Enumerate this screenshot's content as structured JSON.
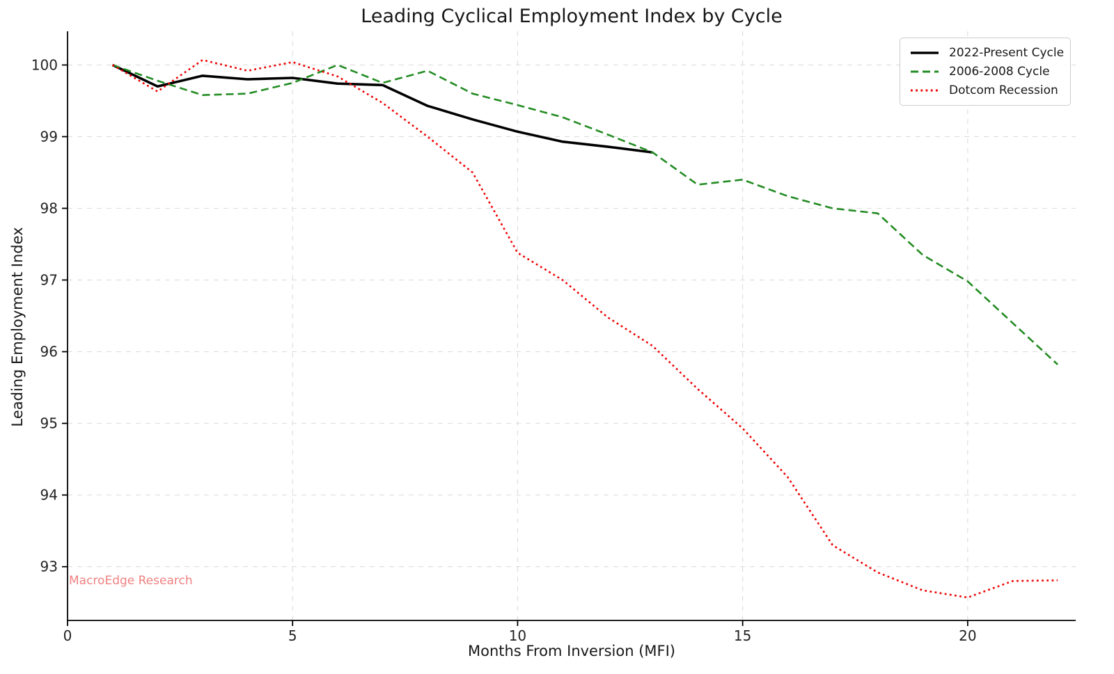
{
  "chart_data": {
    "type": "line",
    "title": "Leading Cyclical Employment Index by Cycle",
    "xlabel": "Months From Inversion (MFI)",
    "ylabel": "Leading Employment Index",
    "watermark": "MacroEdge Research",
    "watermark_color": "#f08080",
    "grid": true,
    "legend_position": "upper right",
    "x_ticks": [
      0,
      5,
      10,
      15,
      20
    ],
    "y_ticks": [
      93,
      94,
      95,
      96,
      97,
      98,
      99,
      100
    ],
    "xlim": [
      0,
      22.4
    ],
    "ylim": [
      92.25,
      100.47
    ],
    "x": [
      1,
      2,
      3,
      4,
      5,
      6,
      7,
      8,
      9,
      10,
      11,
      12,
      13,
      14,
      15,
      16,
      17,
      18,
      19,
      20,
      21,
      22
    ],
    "series": [
      {
        "name": "2022-Present Cycle",
        "color": "#000000",
        "style": "solid",
        "line_width": 3.6,
        "values": [
          100.0,
          99.7,
          99.85,
          99.8,
          99.82,
          99.74,
          99.72,
          99.43,
          99.24,
          99.07,
          98.93,
          98.86,
          98.78
        ]
      },
      {
        "name": "2006-2008 Cycle",
        "color": "#228B22",
        "style": "dashed",
        "line_width": 2.6,
        "values": [
          100.0,
          99.78,
          99.58,
          99.6,
          99.75,
          100.0,
          99.75,
          99.92,
          99.6,
          99.44,
          99.27,
          99.03,
          98.78,
          98.33,
          98.4,
          98.17,
          98.0,
          97.93,
          97.35,
          96.98,
          96.4,
          95.82
        ]
      },
      {
        "name": "Dotcom Recession",
        "color": "#ee0000",
        "style": "dotted",
        "line_width": 2.6,
        "values": [
          100.0,
          99.63,
          100.07,
          99.92,
          100.04,
          99.84,
          99.47,
          99.0,
          98.5,
          97.38,
          97.0,
          96.48,
          96.08,
          95.48,
          94.93,
          94.25,
          93.3,
          92.92,
          92.67,
          92.57,
          92.8,
          92.81
        ]
      }
    ],
    "axis_color": "#000000",
    "grid_color": "#dcdcdc",
    "tick_label_color": "#222222"
  }
}
